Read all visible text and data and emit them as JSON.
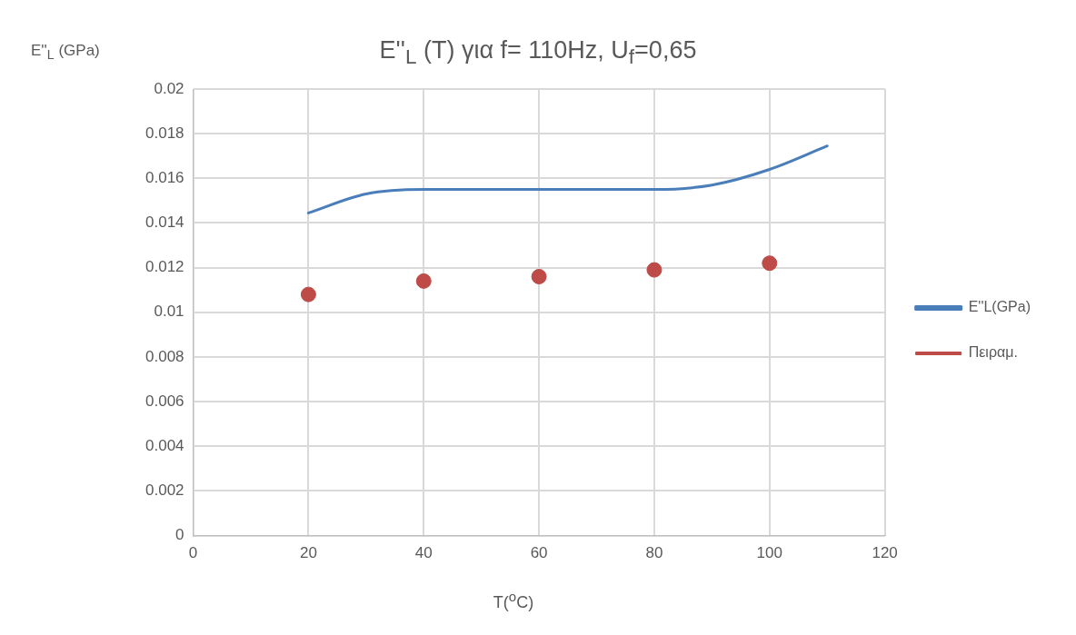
{
  "chart_data": {
    "type": "line",
    "title": "E''$_{L}$ (T) για f= 110Hz, U$_{f}$=0,65",
    "xlabel": "T($^{o}$C)",
    "ylabel": "E''$_{L}$ (GPa)",
    "xlim": [
      0,
      120
    ],
    "xticks": [
      0,
      20,
      40,
      60,
      80,
      100,
      120
    ],
    "ylim": [
      0,
      0.02
    ],
    "yticks": [
      0,
      0.002,
      0.004,
      0.006,
      0.008,
      0.01,
      0.012,
      0.014,
      0.016,
      0.018,
      0.02
    ],
    "grid": true,
    "legend": "right",
    "series": [
      {
        "name": "E''L(GPa)",
        "color": "#4a7ebb",
        "marker": "none",
        "x": [
          20,
          30,
          40,
          50,
          60,
          70,
          80,
          90,
          100,
          110
        ],
        "values": [
          0.01445,
          0.0153,
          0.0155,
          0.0155,
          0.0155,
          0.0155,
          0.0155,
          0.0157,
          0.0164,
          0.01745
        ]
      },
      {
        "name": "Πειραμ.",
        "type": "scatter",
        "color": "#be4b48",
        "marker": "circle",
        "x": [
          20,
          40,
          60,
          80,
          100
        ],
        "values": [
          0.0108,
          0.0114,
          0.0116,
          0.0119,
          0.0122
        ]
      }
    ]
  }
}
